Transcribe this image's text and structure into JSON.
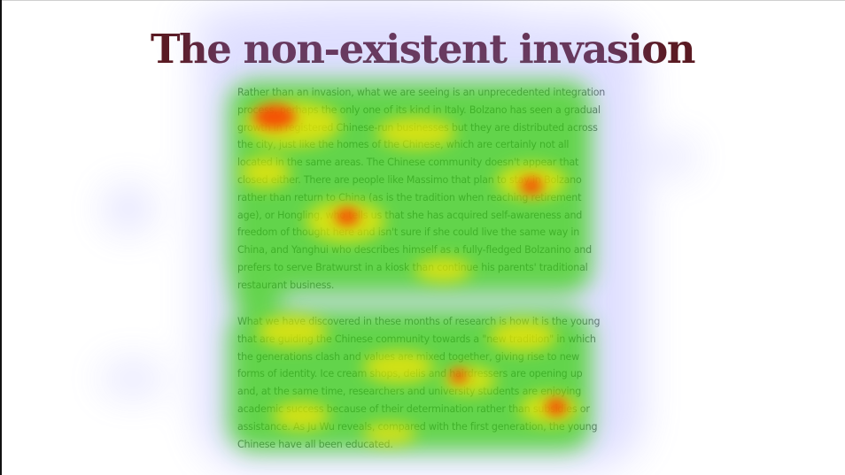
{
  "article": {
    "title": "The non-existent invasion",
    "paragraph_1": "Rather than an invasion, what we are seeing is an unprecedented integration process, perhaps the only one of its kind in Italy. Bolzano has seen a gradual growth in registered Chinese-run businesses but they are distributed across the city, just like the homes of the Chinese, which are certainly not all located in the same areas. The Chinese community doesn't appear that closed either. There are people like Massimo that plan to stay in Bolzano rather than return to China (as is the tradition when reaching retirement age), or Hongling, who tells us that she has acquired self-awareness and freedom of thought here and isn't sure if she could live the same way in China, and Yanghui who describes himself as a fully-fledged Bolzanino and prefers to serve Bratwurst in a kiosk than continue his parents' traditional restaurant business.",
    "paragraph_2": "What we have discovered in these months of research is how it is the young that are guiding the Chinese community towards a \"new tradition\" in which the generations clash and values are mixed together, giving rise to new forms of identity. Ice cream shops, delis and hairdressers are opening up and, at the same time, researchers and university students are enjoying academic success because of their determination rather than subsidies or assistance. As Ju Wu reveals, compared with the first generation, the young Chinese have all been educated."
  },
  "heatmap": {
    "colors": {
      "cool": "#8c8cff",
      "mid": "#2ed000",
      "warm": "#ffe600",
      "hot": "#ff2a00"
    }
  }
}
